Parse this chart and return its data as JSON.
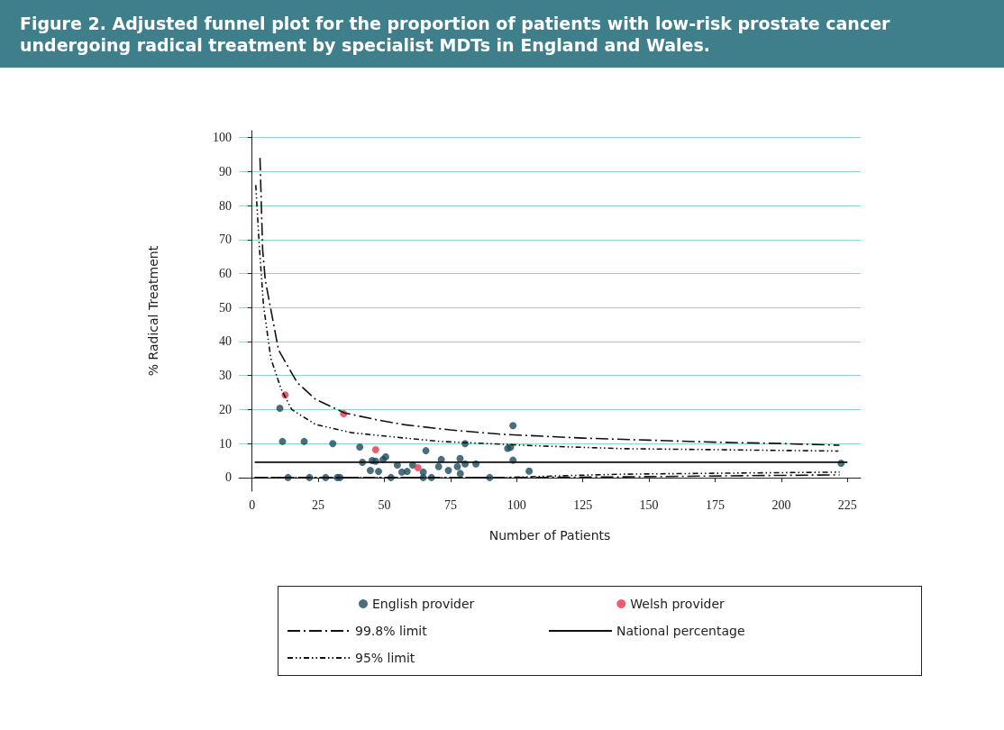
{
  "chart_data": {
    "type": "scatter",
    "title": "Figure 2. Adjusted funnel plot for the proportion of patients with low-risk prostate cancer undergoing radical treatment by specialist MDTs in England and Wales.",
    "xlabel": "Number of Patients",
    "ylabel": "% Radical Treatment",
    "xlim": [
      -5,
      230
    ],
    "xticks": [
      0,
      25,
      50,
      75,
      100,
      125,
      150,
      175,
      200,
      225
    ],
    "ylim": [
      -4,
      102
    ],
    "yticks": [
      0,
      10,
      20,
      30,
      40,
      50,
      60,
      70,
      80,
      90,
      100
    ],
    "grid": "y",
    "legend": "bottom",
    "marker": "circle",
    "series": [
      {
        "name": "English provider",
        "color": "#1b4a5e",
        "x": [
          10.5,
          11.5,
          19.7,
          30.5,
          40.7,
          41.7,
          45.4,
          46.7,
          49.5,
          50.5,
          44.7,
          47.8,
          54.9,
          56.6,
          58.6,
          60.7,
          64.7,
          65.7,
          71.5,
          70.5,
          74.2,
          13.6,
          21.7,
          27.8,
          32.2,
          33.2,
          52.5,
          64.7,
          67.8,
          98.6,
          80.5,
          96.6,
          97.7,
          78.6,
          80.5,
          84.6,
          98.6,
          77.6,
          78.7,
          104.7,
          89.8,
          222.6
        ],
        "values": [
          20.4,
          10.6,
          10.6,
          10,
          9,
          4.5,
          5,
          4.8,
          5.3,
          6.1,
          2.1,
          1.8,
          3.7,
          1.6,
          1.8,
          3.7,
          1.6,
          7.9,
          5.3,
          3.2,
          2.1,
          0,
          0,
          0,
          0,
          0,
          0,
          0,
          0,
          15.3,
          10,
          8.6,
          8.9,
          5.6,
          4,
          4,
          5.1,
          3.2,
          1.2,
          1.9,
          0,
          4.2
        ]
      },
      {
        "name": "Welsh provider",
        "color": "#e8344e",
        "x": [
          12.5,
          34.6,
          46.7,
          62.7
        ],
        "values": [
          24.3,
          18.8,
          8.2,
          2.9
        ]
      },
      {
        "name": "99.8% limit",
        "type": "line",
        "marker": "none",
        "color": "#111111",
        "line_style": "dashed",
        "x": [
          3,
          4,
          5,
          10,
          17,
          24,
          35,
          47,
          58,
          75,
          95,
          125,
          150,
          175,
          200,
          222
        ],
        "values": [
          94,
          67,
          58,
          37.5,
          28,
          23,
          19,
          17,
          15.5,
          14,
          12.7,
          11.6,
          11,
          10.4,
          10,
          9.5
        ]
      },
      {
        "name": "National percentage",
        "type": "line",
        "marker": "none",
        "color": "#111111",
        "line_style": "solid",
        "x": [
          1,
          225
        ],
        "values": [
          4.5,
          4.5
        ]
      },
      {
        "name": "95% limit",
        "type": "line",
        "marker": "none",
        "color": "#111111",
        "line_style": "dotted",
        "x": [
          1.4,
          2.7,
          4.3,
          7.1,
          11,
          15,
          24,
          37.6,
          58,
          71.5,
          108.8,
          140,
          221.6
        ],
        "values": [
          86,
          68.5,
          50.8,
          35,
          26,
          20,
          15.6,
          13.2,
          11.6,
          10.6,
          9.3,
          8.5,
          7.8
        ]
      },
      {
        "type": "line",
        "marker": "none",
        "color": "#111111",
        "line_style": "dashed",
        "x": [
          1,
          100,
          140,
          180,
          222
        ],
        "values": [
          0,
          0,
          0.2,
          0.5,
          0.8
        ]
      },
      {
        "type": "line",
        "marker": "none",
        "color": "#111111",
        "line_style": "dotted",
        "x": [
          1,
          95,
          120,
          140,
          180,
          222
        ],
        "values": [
          0,
          0,
          0.6,
          1,
          1.3,
          1.6
        ]
      }
    ]
  }
}
